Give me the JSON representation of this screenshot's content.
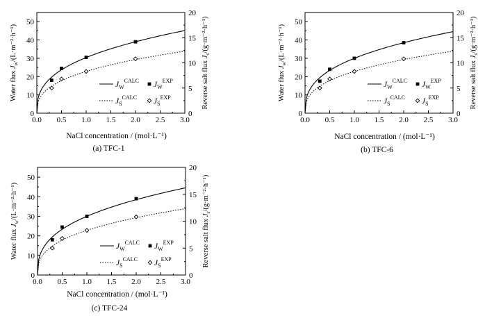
{
  "chart_data": [
    {
      "type": "line",
      "caption": "(a) TFC-1",
      "xlabel": "NaCl concentration / (mol·L⁻¹)",
      "ylabel_left": "Water flux Jw/(L·m⁻²·h⁻¹)",
      "ylabel_right": "Reverse salt flux Js/(g·m⁻²·h⁻¹)",
      "xlim": [
        0,
        3.0
      ],
      "ylim_left": [
        0,
        55
      ],
      "ylim_right": [
        0,
        20
      ],
      "x_ticks": [
        "0.0",
        "0.5",
        "1.0",
        "1.5",
        "2.0",
        "2.5",
        "3.0"
      ],
      "y_ticks_left": [
        "0",
        "10",
        "20",
        "30",
        "40",
        "50"
      ],
      "y_ticks_right": [
        "0",
        "5",
        "10",
        "15",
        "20"
      ],
      "series": [
        {
          "name": "Jw CALC",
          "axis": "left",
          "style": "solid",
          "coef": 30.4,
          "exp": 0.36
        },
        {
          "name": "Jw EXP",
          "axis": "left",
          "style": "square",
          "x": [
            0.3,
            0.5,
            1.0,
            2.0
          ],
          "y": [
            18.0,
            24.5,
            30.5,
            39.0
          ]
        },
        {
          "name": "Js CALC",
          "axis": "right",
          "style": "dotted",
          "coef": 8.3,
          "exp": 0.36
        },
        {
          "name": "Js EXP",
          "axis": "right",
          "style": "diamond",
          "x": [
            0.3,
            0.5,
            1.0,
            2.0
          ],
          "y": [
            5.0,
            6.8,
            8.3,
            10.8
          ]
        }
      ]
    },
    {
      "type": "line",
      "caption": "(b) TFC-6",
      "xlabel": "NaCl concentration / (mol·L⁻¹)",
      "ylabel_left": "Water flux Jw/(L·m⁻²·h⁻¹)",
      "ylabel_right": "Reverse salt flux Js/(g·m⁻²·h⁻¹)",
      "xlim": [
        0,
        3.0
      ],
      "ylim_left": [
        0,
        55
      ],
      "ylim_right": [
        0,
        20
      ],
      "x_ticks": [
        "0.0",
        "0.5",
        "1.0",
        "1.5",
        "2.0",
        "2.5",
        "3.0"
      ],
      "y_ticks_left": [
        "0",
        "10",
        "20",
        "30",
        "40",
        "50"
      ],
      "y_ticks_right": [
        "0",
        "5",
        "10",
        "15",
        "20"
      ],
      "series": [
        {
          "name": "Jw CALC",
          "axis": "left",
          "style": "solid",
          "coef": 30.0,
          "exp": 0.36
        },
        {
          "name": "Jw EXP",
          "axis": "left",
          "style": "square",
          "x": [
            0.3,
            0.5,
            1.0,
            2.0
          ],
          "y": [
            17.5,
            24.0,
            30.0,
            38.5
          ]
        },
        {
          "name": "Js CALC",
          "axis": "right",
          "style": "dotted",
          "coef": 8.3,
          "exp": 0.36
        },
        {
          "name": "Js EXP",
          "axis": "right",
          "style": "diamond",
          "x": [
            0.3,
            0.5,
            1.0,
            2.0
          ],
          "y": [
            5.0,
            6.8,
            8.3,
            10.8
          ]
        }
      ]
    },
    {
      "type": "line",
      "caption": "(c) TFC-24",
      "xlabel": "NaCl concentration / (mol·L⁻¹)",
      "ylabel_left": "Water flux Jw/(L·m⁻²·h⁻¹)",
      "ylabel_right": "Reverse salt flux Js/(g·m⁻²·h⁻¹)",
      "xlim": [
        0,
        3.0
      ],
      "ylim_left": [
        0,
        55
      ],
      "ylim_right": [
        0,
        20
      ],
      "x_ticks": [
        "0.0",
        "0.5",
        "1.0",
        "1.5",
        "2.0",
        "2.5",
        "3.0"
      ],
      "y_ticks_left": [
        "0",
        "10",
        "20",
        "30",
        "40",
        "50"
      ],
      "y_ticks_right": [
        "0",
        "5",
        "10",
        "15",
        "20"
      ],
      "series": [
        {
          "name": "Jw CALC",
          "axis": "left",
          "style": "solid",
          "coef": 30.0,
          "exp": 0.36
        },
        {
          "name": "Jw EXP",
          "axis": "left",
          "style": "square",
          "x": [
            0.3,
            0.5,
            1.0,
            2.0
          ],
          "y": [
            18.0,
            24.5,
            30.0,
            39.0
          ]
        },
        {
          "name": "Js CALC",
          "axis": "right",
          "style": "dotted",
          "coef": 8.3,
          "exp": 0.36
        },
        {
          "name": "Js EXP",
          "axis": "right",
          "style": "diamond",
          "x": [
            0.3,
            0.5,
            1.0,
            2.0
          ],
          "y": [
            5.0,
            6.8,
            8.3,
            10.8
          ]
        }
      ]
    }
  ],
  "legend": {
    "jw_calc": {
      "main": "J",
      "sub": "W",
      "sup": "CALC"
    },
    "jw_exp": {
      "main": "J",
      "sub": "W",
      "sup": "EXP"
    },
    "js_calc": {
      "main": "J",
      "sub": "S",
      "sup": "CALC"
    },
    "js_exp": {
      "main": "J",
      "sub": "S",
      "sup": "EXP"
    }
  },
  "ylabel_parts": {
    "left": {
      "pre": "Water flux ",
      "main": "J",
      "sub": "w",
      "post": "/(L·m⁻²·h⁻¹)"
    },
    "right": {
      "pre": "Reverse salt flux ",
      "main": "J",
      "sub": "s",
      "post": "/(g·m⁻²·h⁻¹)"
    }
  }
}
